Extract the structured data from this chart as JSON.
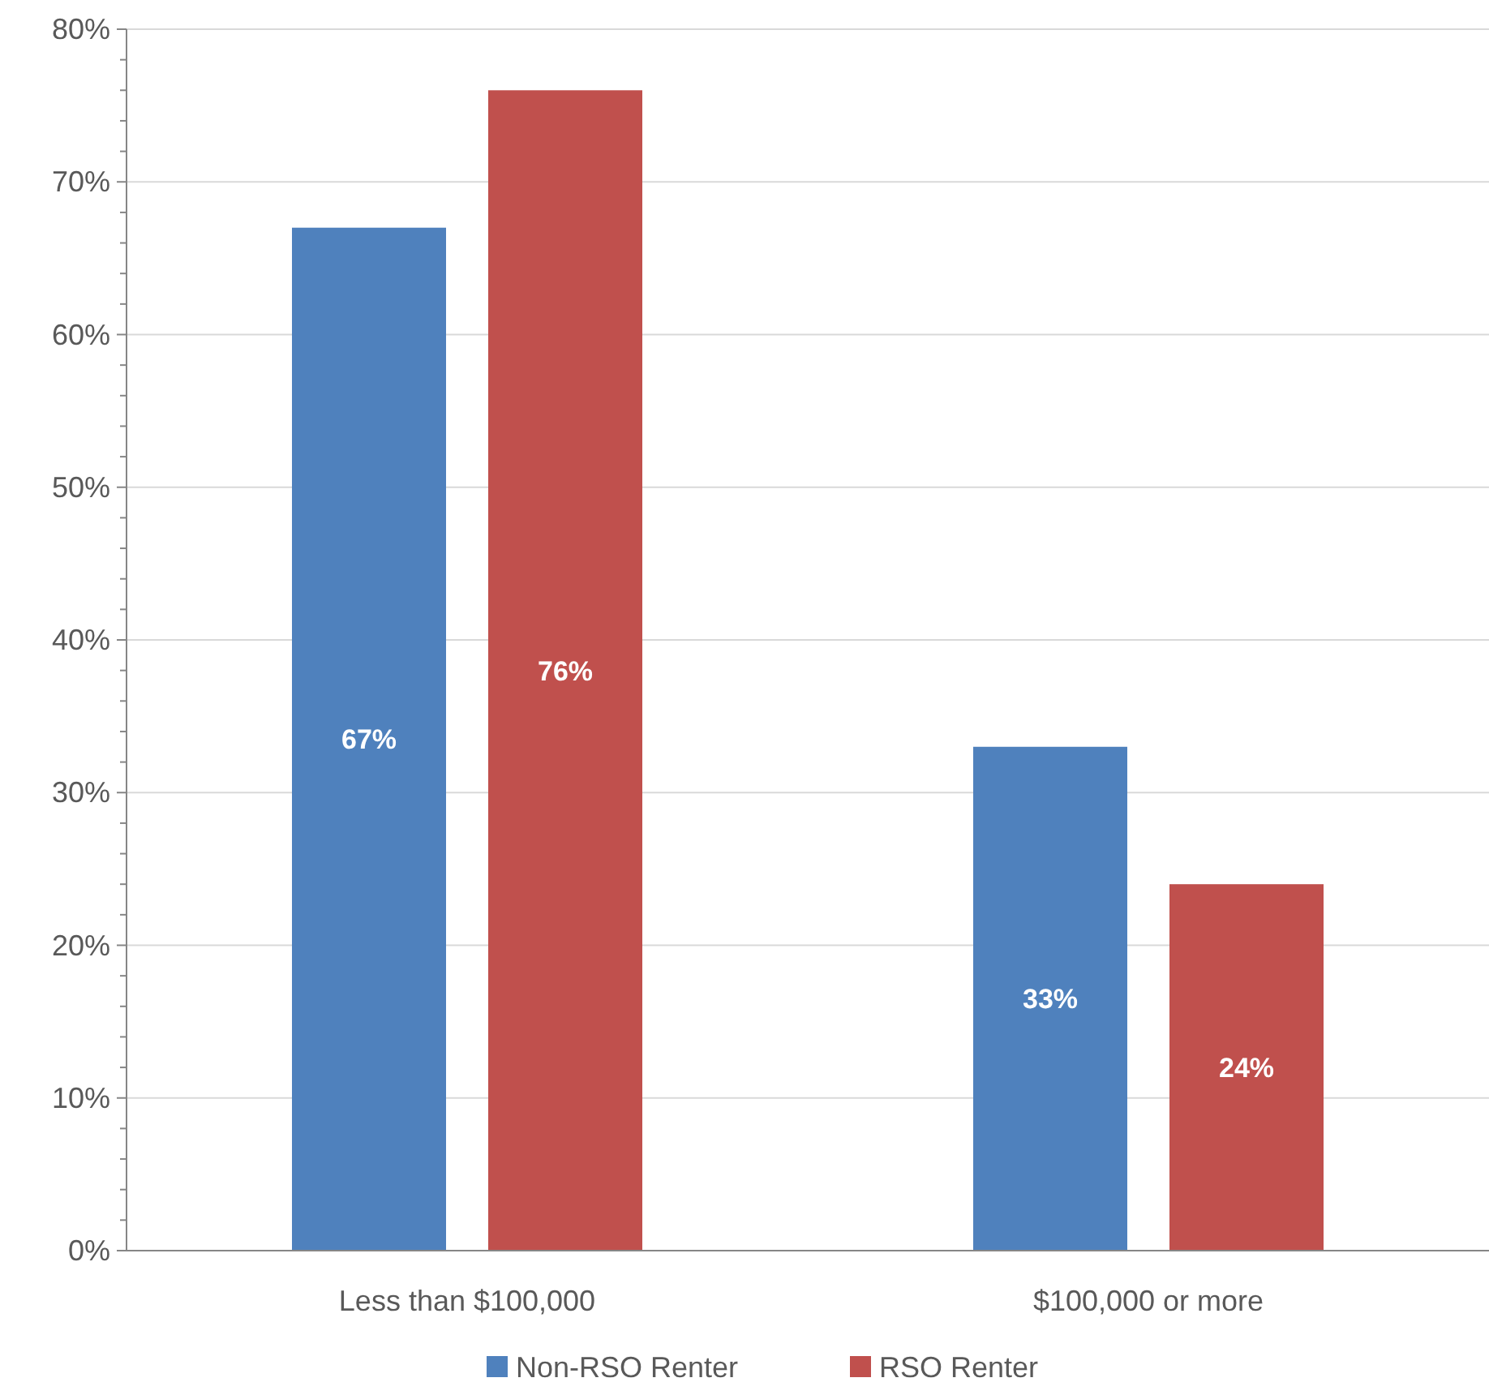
{
  "chart_data": {
    "type": "bar",
    "categories": [
      "Less than $100,000",
      "$100,000 or more"
    ],
    "series": [
      {
        "name": "Non-RSO Renter",
        "color": "#4f81bd",
        "values": [
          67,
          33
        ],
        "value_labels": [
          "67%",
          "33%"
        ]
      },
      {
        "name": "RSO Renter",
        "color": "#c0504d",
        "values": [
          76,
          24
        ],
        "value_labels": [
          "76%",
          "24%"
        ]
      }
    ],
    "ylim": [
      0,
      80
    ],
    "yticks": [
      {
        "value": 0,
        "label": "0%"
      },
      {
        "value": 2,
        "label": null
      },
      {
        "value": 4,
        "label": null
      },
      {
        "value": 6,
        "label": null
      },
      {
        "value": 8,
        "label": null
      },
      {
        "value": 10,
        "label": "10%"
      },
      {
        "value": 12,
        "label": null
      },
      {
        "value": 14,
        "label": null
      },
      {
        "value": 16,
        "label": null
      },
      {
        "value": 18,
        "label": null
      },
      {
        "value": 20,
        "label": "20%"
      },
      {
        "value": 22,
        "label": null
      },
      {
        "value": 24,
        "label": null
      },
      {
        "value": 26,
        "label": null
      },
      {
        "value": 28,
        "label": null
      },
      {
        "value": 30,
        "label": "30%"
      },
      {
        "value": 32,
        "label": null
      },
      {
        "value": 34,
        "label": null
      },
      {
        "value": 36,
        "label": null
      },
      {
        "value": 38,
        "label": null
      },
      {
        "value": 40,
        "label": "40%"
      },
      {
        "value": 42,
        "label": null
      },
      {
        "value": 44,
        "label": null
      },
      {
        "value": 46,
        "label": null
      },
      {
        "value": 48,
        "label": null
      },
      {
        "value": 50,
        "label": "50%"
      },
      {
        "value": 52,
        "label": null
      },
      {
        "value": 54,
        "label": null
      },
      {
        "value": 56,
        "label": null
      },
      {
        "value": 58,
        "label": null
      },
      {
        "value": 60,
        "label": "60%"
      },
      {
        "value": 62,
        "label": null
      },
      {
        "value": 64,
        "label": null
      },
      {
        "value": 66,
        "label": null
      },
      {
        "value": 68,
        "label": null
      },
      {
        "value": 70,
        "label": "70%"
      },
      {
        "value": 72,
        "label": null
      },
      {
        "value": 74,
        "label": null
      },
      {
        "value": 76,
        "label": null
      },
      {
        "value": 78,
        "label": null
      },
      {
        "value": 80,
        "label": "80%"
      }
    ],
    "grid": "y",
    "legend": "bottom"
  }
}
